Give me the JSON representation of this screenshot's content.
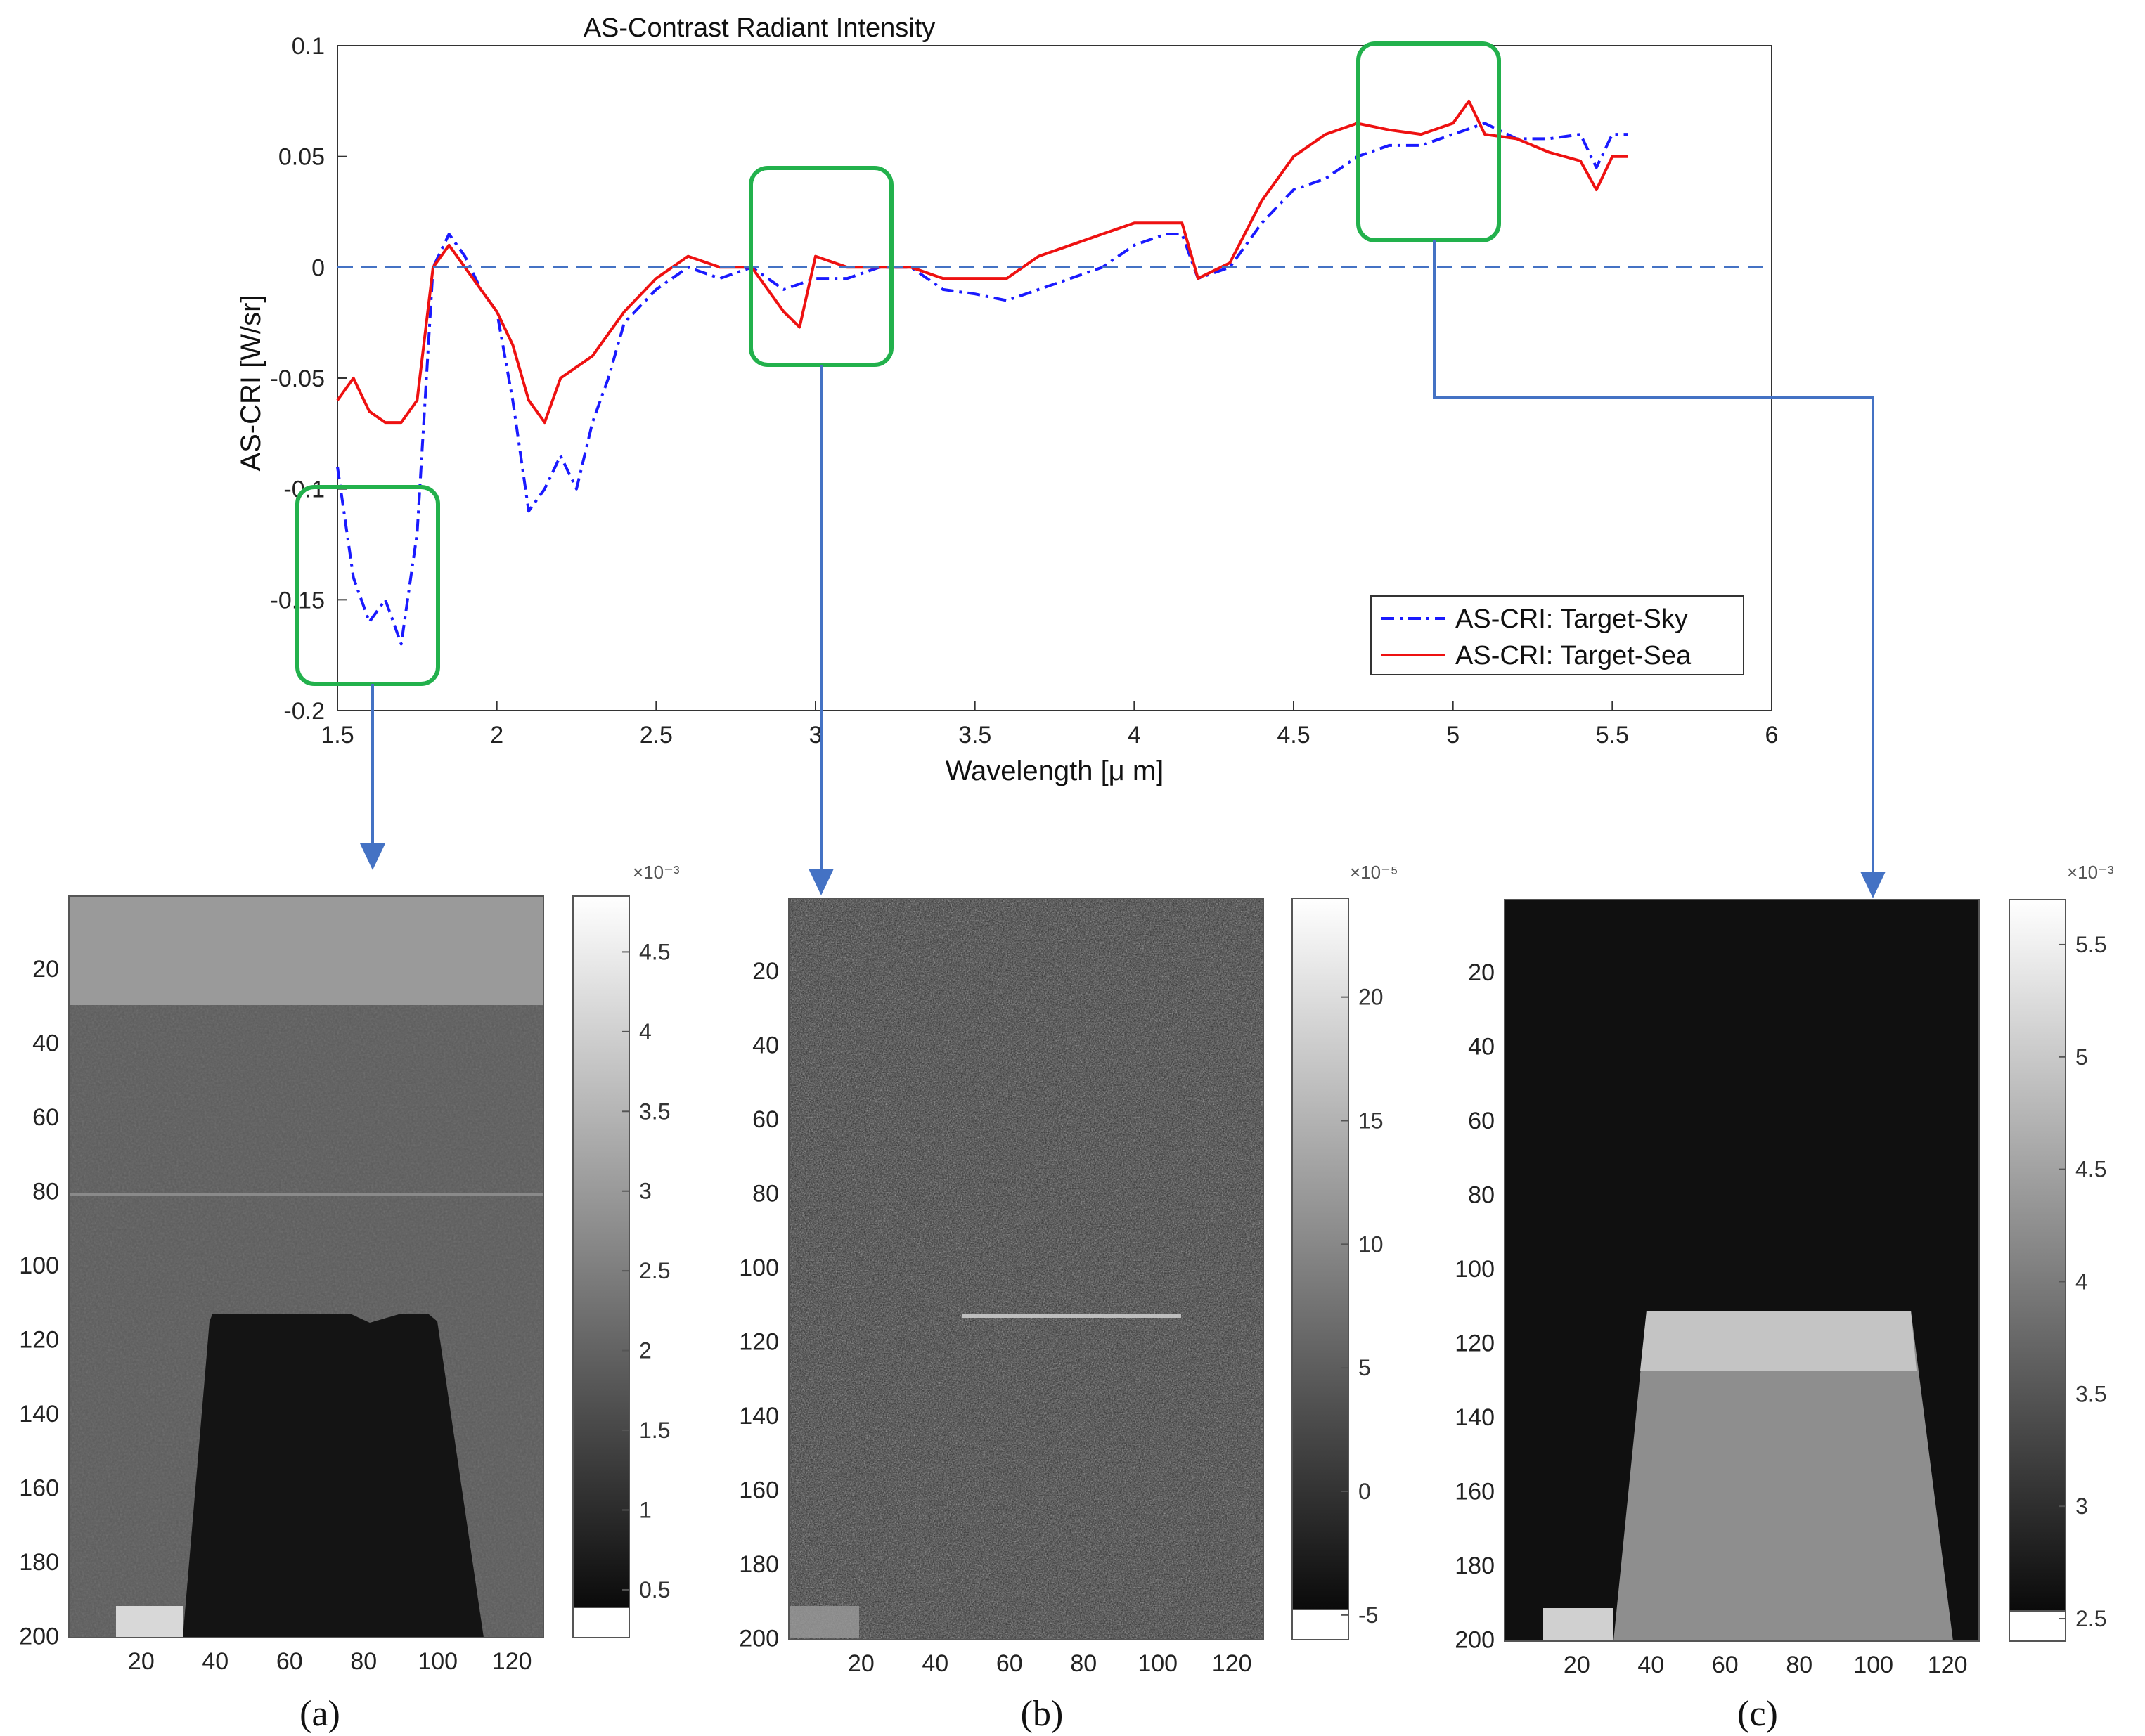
{
  "chart_data": [
    {
      "type": "line",
      "title": "AS-Contrast Radiant Intensity",
      "xlabel": "Wavelength [μ m]",
      "ylabel": "AS-CRI [W/sr]",
      "xlim": [
        1.5,
        6
      ],
      "ylim": [
        -0.2,
        0.1
      ],
      "xticks": [
        "1.5",
        "2",
        "2.5",
        "3",
        "3.5",
        "4",
        "4.5",
        "5",
        "5.5",
        "6"
      ],
      "yticks": [
        "-0.2",
        "-0.15",
        "-0.1",
        "-0.05",
        "0",
        "0.05",
        "0.1"
      ],
      "legend": {
        "position": "bottom-right",
        "entries": [
          "AS-CRI: Target-Sky",
          "AS-CRI: Target-Sea"
        ]
      },
      "series": [
        {
          "name": "AS-CRI: Target-Sky",
          "style": "dash-dot",
          "color": "#1a1aff",
          "x": [
            1.5,
            1.55,
            1.6,
            1.65,
            1.7,
            1.75,
            1.8,
            1.85,
            1.9,
            1.95,
            2.0,
            2.05,
            2.1,
            2.15,
            2.2,
            2.25,
            2.3,
            2.35,
            2.4,
            2.5,
            2.6,
            2.7,
            2.8,
            2.9,
            3.0,
            3.1,
            3.2,
            3.3,
            3.4,
            3.5,
            3.6,
            3.7,
            3.8,
            3.9,
            4.0,
            4.1,
            4.15,
            4.2,
            4.3,
            4.4,
            4.5,
            4.6,
            4.7,
            4.8,
            4.9,
            5.0,
            5.1,
            5.2,
            5.3,
            5.4,
            5.45,
            5.5,
            5.55
          ],
          "y": [
            -0.09,
            -0.14,
            -0.16,
            -0.15,
            -0.17,
            -0.12,
            0.0,
            0.015,
            0.005,
            -0.01,
            -0.02,
            -0.06,
            -0.11,
            -0.1,
            -0.085,
            -0.1,
            -0.07,
            -0.05,
            -0.025,
            -0.01,
            0.0,
            -0.005,
            0.0,
            -0.01,
            -0.005,
            -0.005,
            0.0,
            0.0,
            -0.01,
            -0.012,
            -0.015,
            -0.01,
            -0.005,
            0.0,
            0.01,
            0.015,
            0.015,
            -0.005,
            0.0,
            0.02,
            0.035,
            0.04,
            0.05,
            0.055,
            0.055,
            0.06,
            0.065,
            0.058,
            0.058,
            0.06,
            0.045,
            0.06,
            0.06
          ]
        },
        {
          "name": "AS-CRI: Target-Sea",
          "style": "solid",
          "color": "#ee1111",
          "x": [
            1.5,
            1.55,
            1.6,
            1.65,
            1.7,
            1.75,
            1.8,
            1.85,
            1.9,
            1.95,
            2.0,
            2.05,
            2.1,
            2.15,
            2.2,
            2.25,
            2.3,
            2.35,
            2.4,
            2.5,
            2.6,
            2.7,
            2.8,
            2.9,
            2.95,
            3.0,
            3.1,
            3.2,
            3.3,
            3.4,
            3.5,
            3.6,
            3.7,
            3.8,
            3.9,
            4.0,
            4.1,
            4.15,
            4.2,
            4.3,
            4.4,
            4.5,
            4.6,
            4.7,
            4.8,
            4.9,
            5.0,
            5.05,
            5.1,
            5.2,
            5.3,
            5.4,
            5.45,
            5.5,
            5.55
          ],
          "y": [
            -0.06,
            -0.05,
            -0.065,
            -0.07,
            -0.07,
            -0.06,
            0.0,
            0.01,
            0.0,
            -0.01,
            -0.02,
            -0.035,
            -0.06,
            -0.07,
            -0.05,
            -0.045,
            -0.04,
            -0.03,
            -0.02,
            -0.005,
            0.005,
            0.0,
            0.0,
            -0.02,
            -0.027,
            0.005,
            0.0,
            0.0,
            0.0,
            -0.005,
            -0.005,
            -0.005,
            0.005,
            0.01,
            0.015,
            0.02,
            0.02,
            0.02,
            -0.005,
            0.002,
            0.03,
            0.05,
            0.06,
            0.065,
            0.062,
            0.06,
            0.065,
            0.075,
            0.06,
            0.058,
            0.052,
            0.048,
            0.035,
            0.05,
            0.05
          ]
        },
        {
          "name": "zero",
          "style": "dashed",
          "color": "#4472c4",
          "x": [
            1.5,
            6
          ],
          "y": [
            0,
            0
          ]
        }
      ],
      "annotations": [
        "zoom box near 1.6 μm",
        "zoom box near 3 μm",
        "zoom box near 5 μm"
      ]
    },
    {
      "type": "heatmap",
      "caption": "(a)",
      "xticks": [
        "20",
        "40",
        "60",
        "80",
        "100",
        "120"
      ],
      "yticks": [
        "20",
        "40",
        "60",
        "80",
        "100",
        "120",
        "140",
        "160",
        "180",
        "200"
      ],
      "colorbar": {
        "exponent": "×10⁻³",
        "ticks": [
          "4.5",
          "4",
          "3.5",
          "3",
          "2.5",
          "2",
          "1.5",
          "1",
          "0.5"
        ]
      }
    },
    {
      "type": "heatmap",
      "caption": "(b)",
      "xticks": [
        "20",
        "40",
        "60",
        "80",
        "100",
        "120"
      ],
      "yticks": [
        "20",
        "40",
        "60",
        "80",
        "100",
        "120",
        "140",
        "160",
        "180",
        "200"
      ],
      "colorbar": {
        "exponent": "×10⁻⁵",
        "ticks": [
          "20",
          "15",
          "10",
          "5",
          "0",
          "-5"
        ]
      }
    },
    {
      "type": "heatmap",
      "caption": "(c)",
      "xticks": [
        "20",
        "40",
        "60",
        "80",
        "100",
        "120"
      ],
      "yticks": [
        "20",
        "40",
        "60",
        "80",
        "100",
        "120",
        "140",
        "160",
        "180",
        "200"
      ],
      "colorbar": {
        "exponent": "×10⁻³",
        "ticks": [
          "5.5",
          "5",
          "4.5",
          "4",
          "3.5",
          "3",
          "2.5"
        ]
      }
    }
  ]
}
